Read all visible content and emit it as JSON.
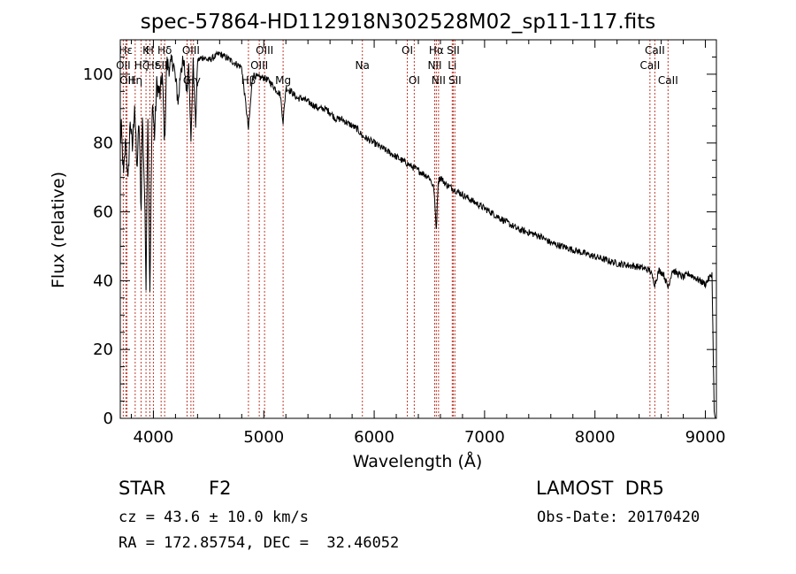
{
  "chart_data": {
    "type": "line",
    "title": "spec-57864-HD112918N302528M02_sp11-117.fits",
    "xlabel": "Wavelength (Å)",
    "ylabel": "Flux (relative)",
    "xlim": [
      3700,
      9100
    ],
    "ylim": [
      0,
      110
    ],
    "x_ticks": [
      "4000",
      "5000",
      "6000",
      "7000",
      "8000",
      "9000"
    ],
    "y_ticks": [
      "0",
      "20",
      "40",
      "60",
      "80",
      "100"
    ],
    "x_tick_values": [
      4000,
      5000,
      6000,
      7000,
      8000,
      9000
    ],
    "y_tick_values": [
      0,
      20,
      40,
      60,
      80,
      100
    ],
    "grid": false,
    "series": [
      {
        "x": [
          3700,
          3710,
          3730,
          3750,
          3770,
          3790,
          3810,
          3830,
          3850,
          3870,
          3889,
          3900,
          3920,
          3933,
          3950,
          3968,
          3990,
          4010,
          4030,
          4060,
          4080,
          4102,
          4120,
          4150,
          4180,
          4200,
          4227,
          4250,
          4280,
          4305,
          4320,
          4340,
          4360,
          4383,
          4400,
          4450,
          4500,
          4550,
          4600,
          4650,
          4700,
          4750,
          4800,
          4861,
          4900,
          4950,
          5000,
          5050,
          5100,
          5150,
          5175,
          5200,
          5250,
          5300,
          5350,
          5400,
          5450,
          5500,
          5550,
          5600,
          5650,
          5700,
          5750,
          5800,
          5850,
          5893,
          5950,
          6000,
          6050,
          6100,
          6150,
          6200,
          6250,
          6300,
          6350,
          6400,
          6450,
          6500,
          6540,
          6563,
          6580,
          6600,
          6650,
          6700,
          6750,
          6800,
          6900,
          7000,
          7100,
          7200,
          7300,
          7400,
          7500,
          7600,
          7700,
          7800,
          7900,
          8000,
          8100,
          8200,
          8300,
          8400,
          8498,
          8542,
          8580,
          8620,
          8662,
          8700,
          8750,
          8800,
          8850,
          8900,
          8950,
          9000,
          9020,
          9040,
          9060,
          9080,
          9090
        ],
        "y": [
          80,
          84,
          70,
          82,
          68,
          87,
          78,
          92,
          72,
          86,
          60,
          88,
          65,
          40,
          90,
          35,
          93,
          82,
          97,
          94,
          100,
          80,
          103,
          102,
          104,
          98,
          92,
          103,
          102,
          95,
          104,
          80,
          104,
          85,
          104,
          105,
          104,
          105,
          106,
          105,
          104,
          103,
          102,
          84,
          100,
          99,
          99,
          98,
          96,
          94,
          86,
          96,
          95,
          93,
          93,
          92,
          91,
          90,
          90,
          89,
          87,
          87,
          86,
          85,
          84,
          82,
          81,
          80,
          79,
          78,
          77,
          76,
          75,
          74,
          73,
          72,
          71,
          70,
          67,
          55,
          69,
          70,
          68,
          67,
          66,
          65,
          63,
          61,
          59,
          57,
          55,
          54,
          53,
          51,
          50,
          49,
          48,
          47,
          46,
          45,
          44.5,
          44,
          43,
          39,
          43,
          42,
          38,
          43,
          42,
          41,
          42,
          41,
          40,
          39,
          40,
          41,
          42,
          2,
          0
        ]
      }
    ],
    "lines": [
      {
        "x": 3727,
        "label": "OII",
        "row": 1
      },
      {
        "x": 3750,
        "label": "Hε",
        "row": 0
      },
      {
        "x": 3760,
        "label": "OII",
        "row": 2
      },
      {
        "x": 3835,
        "label": "Hη",
        "row": 2
      },
      {
        "x": 3889,
        "label": "Hζ",
        "row": 1
      },
      {
        "x": 3933,
        "label": "K",
        "row": 0
      },
      {
        "x": 3968,
        "label": "H",
        "row": 0
      },
      {
        "x": 4000,
        "label": "Hε",
        "row": 1
      },
      {
        "x": 4070,
        "label": "SII",
        "row": 1
      },
      {
        "x": 4102,
        "label": "Hδ",
        "row": 0
      },
      {
        "x": 4305,
        "label": "G",
        "row": 2
      },
      {
        "x": 4340,
        "label": "OIII",
        "row": 0
      },
      {
        "x": 4363,
        "label": "Hγ",
        "row": 2
      },
      {
        "x": 4861,
        "label": "Hβ",
        "row": 2
      },
      {
        "x": 4959,
        "label": "OIII",
        "row": 1
      },
      {
        "x": 5007,
        "label": "OIII",
        "row": 0
      },
      {
        "x": 5175,
        "label": "Mg",
        "row": 2
      },
      {
        "x": 5893,
        "label": "Na",
        "row": 1
      },
      {
        "x": 6300,
        "label": "OI",
        "row": 0
      },
      {
        "x": 6363,
        "label": "OI",
        "row": 2
      },
      {
        "x": 6548,
        "label": "NII",
        "row": 1
      },
      {
        "x": 6563,
        "label": "Hα",
        "row": 0
      },
      {
        "x": 6583,
        "label": "NII",
        "row": 2
      },
      {
        "x": 6707,
        "label": "Li",
        "row": 1
      },
      {
        "x": 6716,
        "label": "SII",
        "row": 0
      },
      {
        "x": 6731,
        "label": "SII",
        "row": 2
      },
      {
        "x": 8498,
        "label": "CaII",
        "row": 1
      },
      {
        "x": 8542,
        "label": "CaII",
        "row": 0
      },
      {
        "x": 8662,
        "label": "CaII",
        "row": 2
      }
    ]
  },
  "info": {
    "class": "STAR",
    "subclass": "F2",
    "survey": "LAMOST  DR5",
    "cz": "cz = 43.6 ± 10.0 km/s",
    "obsdate": "Obs-Date: 20170420",
    "radec": "RA = 172.85754, DEC =  32.46052"
  }
}
